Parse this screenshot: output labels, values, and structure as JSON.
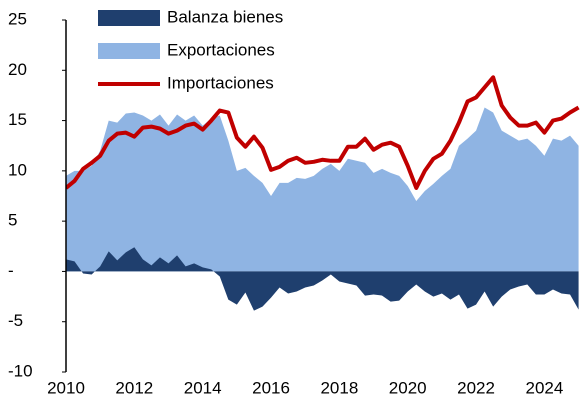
{
  "chart_data": {
    "type": "area",
    "x": [
      2010,
      2010.25,
      2010.5,
      2010.75,
      2011,
      2011.25,
      2011.5,
      2011.75,
      2012,
      2012.25,
      2012.5,
      2012.75,
      2013,
      2013.25,
      2013.5,
      2013.75,
      2014,
      2014.25,
      2014.5,
      2014.75,
      2015,
      2015.25,
      2015.5,
      2015.75,
      2016,
      2016.25,
      2016.5,
      2016.75,
      2017,
      2017.25,
      2017.5,
      2017.75,
      2018,
      2018.25,
      2018.5,
      2018.75,
      2019,
      2019.25,
      2019.5,
      2019.75,
      2020,
      2020.25,
      2020.5,
      2020.75,
      2021,
      2021.25,
      2021.5,
      2021.75,
      2022,
      2022.25,
      2022.5,
      2022.75,
      2023,
      2023.25,
      2023.5,
      2023.75,
      2024,
      2024.25,
      2024.5,
      2024.75,
      2025
    ],
    "series": [
      {
        "name": "Balanza bienes",
        "color": "#1f3f6e",
        "kind": "area",
        "values": [
          1.2,
          1,
          -0.2,
          -0.3,
          0.5,
          2,
          1.1,
          1.9,
          2.4,
          1.2,
          0.6,
          1.4,
          0.8,
          1.6,
          0.5,
          0.8,
          0.4,
          0.2,
          -0.5,
          -2.8,
          -3.3,
          -2.1,
          -3.9,
          -3.5,
          -2.6,
          -1.6,
          -2.2,
          -2,
          -1.6,
          -1.4,
          -0.9,
          -0.3,
          -1,
          -1.2,
          -1.4,
          -2.4,
          -2.3,
          -2.4,
          -3,
          -2.9,
          -2,
          -1.3,
          -2,
          -2.5,
          -2.2,
          -2.8,
          -2.3,
          -3.7,
          -3.3,
          -2,
          -3.5,
          -2.5,
          -1.8,
          -1.5,
          -1.3,
          -2.3,
          -2.3,
          -1.8,
          -2.2,
          -2.3,
          -3.8
        ]
      },
      {
        "name": "Exportaciones",
        "color": "#8fb4e3",
        "kind": "area",
        "values": [
          9.5,
          10,
          10,
          10.5,
          12,
          15,
          14.8,
          15.7,
          15.8,
          15.5,
          15,
          15.6,
          14.5,
          15.6,
          15,
          15.5,
          14.5,
          15.2,
          15.5,
          13,
          10,
          10.3,
          9.5,
          8.8,
          7.5,
          8.8,
          8.8,
          9.3,
          9.2,
          9.5,
          10.2,
          10.7,
          10,
          11.2,
          11,
          10.8,
          9.8,
          10.2,
          9.8,
          9.5,
          8.5,
          7,
          8,
          8.7,
          9.5,
          10.2,
          12.5,
          13.2,
          14,
          16.3,
          15.8,
          14,
          13.5,
          13,
          13.2,
          12.5,
          11.5,
          13.2,
          13,
          13.5,
          12.5
        ]
      },
      {
        "name": "Importaciones",
        "color": "#c00000",
        "kind": "line",
        "values": [
          8.3,
          9,
          10.2,
          10.8,
          11.5,
          13,
          13.7,
          13.8,
          13.4,
          14.3,
          14.4,
          14.2,
          13.7,
          14,
          14.5,
          14.7,
          14.1,
          15,
          16,
          15.8,
          13.3,
          12.4,
          13.4,
          12.3,
          10.1,
          10.4,
          11,
          11.3,
          10.8,
          10.9,
          11.1,
          11,
          11,
          12.4,
          12.4,
          13.2,
          12.1,
          12.6,
          12.8,
          12.4,
          10.5,
          8.3,
          10,
          11.2,
          11.7,
          13,
          14.8,
          16.9,
          17.3,
          18.3,
          19.3,
          16.5,
          15.3,
          14.5,
          14.5,
          14.8,
          13.8,
          15,
          15.2,
          15.8,
          16.3
        ]
      }
    ],
    "xlim": [
      2010,
      2025.1
    ],
    "xticks": [
      2010,
      2012,
      2014,
      2016,
      2018,
      2020,
      2022,
      2024
    ],
    "ylim": [
      -10,
      25
    ],
    "yticks": [
      -10,
      -5,
      {
        "value": 0,
        "label": "-"
      },
      5,
      10,
      15,
      20,
      25
    ]
  }
}
